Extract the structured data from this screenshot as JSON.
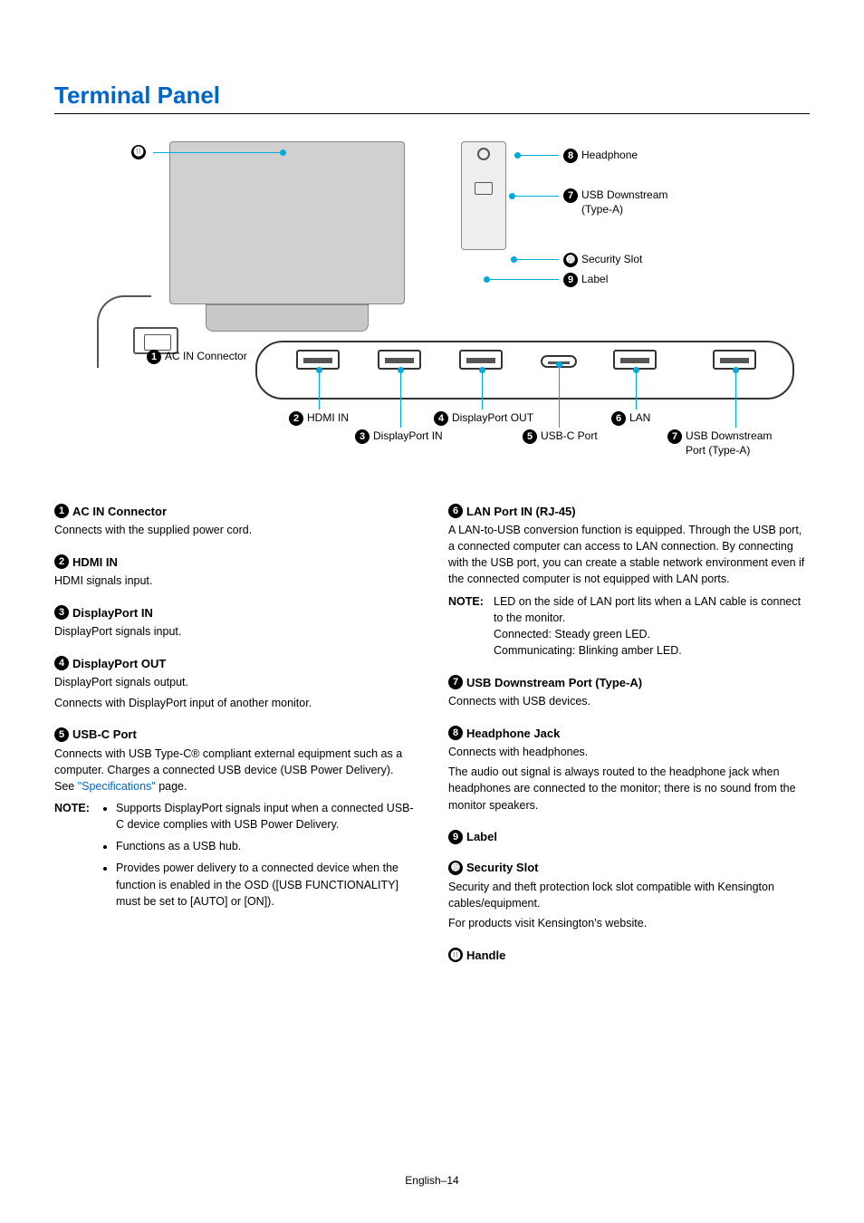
{
  "title": "Terminal Panel",
  "footer": "English–14",
  "diagram": {
    "labels": {
      "handle": {
        "num": "⓫",
        "text": "",
        "name_only": true
      },
      "headphone": {
        "num": "8",
        "text": "Headphone"
      },
      "usb_down_side": {
        "num": "7",
        "text": "USB Downstream",
        "text2": "(Type-A)"
      },
      "security": {
        "num": "➓",
        "text": "Security Slot"
      },
      "label": {
        "num": "9",
        "text": "Label"
      },
      "ac": {
        "num": "1",
        "text": "AC IN Connector"
      },
      "hdmi": {
        "num": "2",
        "text": "HDMI IN"
      },
      "dp_in": {
        "num": "3",
        "text": "DisplayPort IN"
      },
      "dp_out": {
        "num": "4",
        "text": "DisplayPort OUT"
      },
      "usbc": {
        "num": "5",
        "text": "USB-C Port"
      },
      "lan": {
        "num": "6",
        "text": "LAN"
      },
      "usb_down_strip": {
        "num": "7",
        "text": "USB Downstream",
        "text2": "Port (Type-A)"
      }
    },
    "colors": {
      "leader": "#00aadd"
    }
  },
  "leftItems": [
    {
      "num": "1",
      "head": "AC IN Connector",
      "body": [
        "Connects with the supplied power cord."
      ]
    },
    {
      "num": "2",
      "head": "HDMI IN",
      "body": [
        "HDMI signals input."
      ]
    },
    {
      "num": "3",
      "head": "DisplayPort IN",
      "body": [
        "DisplayPort signals input."
      ]
    },
    {
      "num": "4",
      "head": "DisplayPort OUT",
      "body": [
        "DisplayPort signals output.",
        "Connects with DisplayPort input of another monitor."
      ]
    },
    {
      "num": "5",
      "head": "USB-C Port",
      "body": [
        "Connects with USB Type-C® compliant external equipment such as a computer. Charges a connected USB device (USB Power Delivery). See <span class=\"link\">\"Specifications\"</span> page."
      ],
      "note": {
        "label": "NOTE:",
        "bullets": [
          "Supports DisplayPort signals input when a connected USB-C device complies with USB Power Delivery.",
          "Functions as a USB hub.",
          "Provides power delivery to a connected device when the function is enabled in the OSD ([USB FUNCTIONALITY] must be set to [AUTO] or [ON])."
        ]
      }
    }
  ],
  "rightItems": [
    {
      "num": "6",
      "head": "LAN Port IN (RJ-45)",
      "body": [
        "A LAN-to-USB conversion function is equipped. Through the USB port, a connected computer can access to LAN connection. By connecting with the USB port, you can create a stable network environment even if the connected computer is not equipped with LAN ports."
      ],
      "note": {
        "label": "NOTE:",
        "text": "LED on the side of LAN port lits when a LAN cable is connect to the monitor.<br>Connected: Steady green LED.<br>Communicating: Blinking amber LED."
      }
    },
    {
      "num": "7",
      "head": "USB Downstream Port (Type-A)",
      "body": [
        "Connects with USB devices."
      ]
    },
    {
      "num": "8",
      "head": "Headphone Jack",
      "body": [
        "Connects with headphones.",
        "The audio out signal is always routed to the headphone jack when headphones are connected to the monitor; there is no sound from the monitor speakers."
      ]
    },
    {
      "num": "9",
      "head": "Label",
      "body": []
    },
    {
      "num": "➓",
      "head": "Security Slot",
      "body": [
        "Security and theft protection lock slot compatible with Kensington cables/equipment.",
        "For products visit Kensington's website."
      ]
    },
    {
      "num": "⓫",
      "head": "Handle",
      "body": []
    }
  ]
}
